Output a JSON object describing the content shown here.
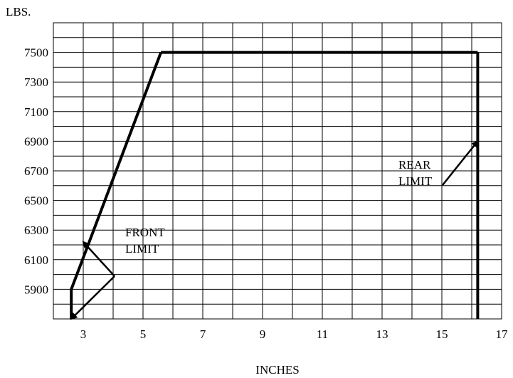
{
  "chart_data": {
    "type": "line",
    "title": "",
    "ylabel": "LBS.",
    "xlabel": "INCHES",
    "xlim": [
      2,
      17
    ],
    "ylim": [
      5700,
      7700
    ],
    "grid": true,
    "x_ticks": [
      "3",
      "5",
      "7",
      "9",
      "11",
      "13",
      "15",
      "17"
    ],
    "y_ticks": [
      "7500",
      "7300",
      "7100",
      "6900",
      "6700",
      "6500",
      "6300",
      "6100",
      "5900"
    ],
    "series": [
      {
        "name": "FRONT LIMIT",
        "x": [
          2.6,
          2.6,
          5.6
        ],
        "y": [
          5700,
          5900,
          7500
        ]
      },
      {
        "name": "",
        "x": [
          5.6,
          16.2
        ],
        "y": [
          7500,
          7500
        ]
      },
      {
        "name": "REAR LIMIT",
        "x": [
          16.2,
          16.2
        ],
        "y": [
          7500,
          5700
        ]
      }
    ],
    "annotations": [
      {
        "lines": [
          "FRONT",
          "LIMIT"
        ],
        "points_to": [
          {
            "x": 3.0,
            "y": 6220
          },
          {
            "x": 2.6,
            "y": 5700
          }
        ]
      },
      {
        "lines": [
          "REAR",
          "LIMIT"
        ],
        "points_to": [
          {
            "x": 16.2,
            "y": 6900
          }
        ]
      }
    ]
  }
}
